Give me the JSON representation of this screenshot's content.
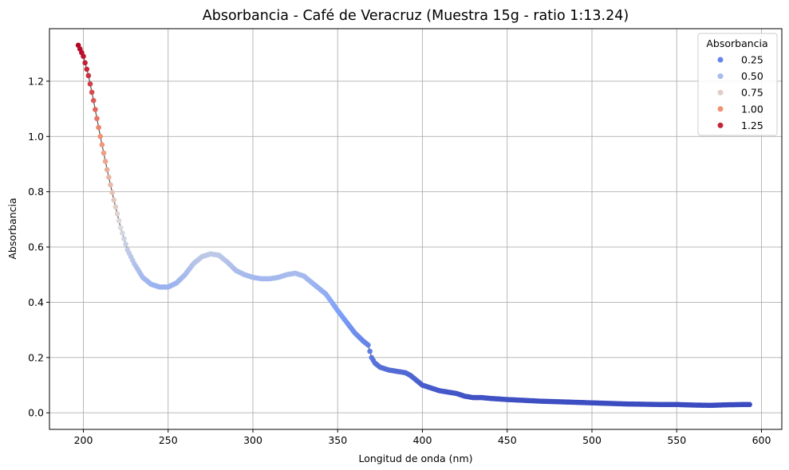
{
  "chart_data": {
    "type": "scatter",
    "title": "Absorbancia - Café de Veracruz (Muestra 15g - ratio 1:13.24)",
    "xlabel": "Longitud de onda (nm)",
    "ylabel": "Absorbancia",
    "xlim": [
      180,
      612
    ],
    "ylim": [
      -0.06,
      1.39
    ],
    "xticks": [
      "200",
      "250",
      "300",
      "350",
      "400",
      "450",
      "500",
      "550",
      "600"
    ],
    "yticks": [
      "0.0",
      "0.2",
      "0.4",
      "0.6",
      "0.8",
      "1.0",
      "1.2"
    ],
    "grid": true,
    "colormap": "coolwarm",
    "legend": {
      "title": "Absorbancia",
      "placement": "top-right",
      "entries": [
        "0.25",
        "0.50",
        "0.75",
        "1.00",
        "1.25"
      ]
    },
    "anchor_points": {
      "x": [
        197,
        200,
        203,
        206,
        210,
        214,
        218,
        222,
        226,
        230,
        235,
        240,
        245,
        250,
        255,
        260,
        265,
        270,
        275,
        280,
        285,
        290,
        295,
        300,
        305,
        310,
        315,
        320,
        325,
        330,
        335,
        340,
        343,
        346,
        350,
        355,
        360,
        365,
        368,
        370,
        372,
        375,
        380,
        385,
        390,
        393,
        396,
        400,
        405,
        410,
        415,
        420,
        425,
        430,
        435,
        440,
        450,
        460,
        470,
        480,
        490,
        500,
        510,
        520,
        530,
        540,
        550,
        560,
        570,
        580,
        590,
        593
      ],
      "y": [
        1.33,
        1.29,
        1.22,
        1.13,
        1.0,
        0.88,
        0.77,
        0.67,
        0.59,
        0.54,
        0.49,
        0.465,
        0.455,
        0.455,
        0.47,
        0.5,
        0.54,
        0.565,
        0.575,
        0.57,
        0.545,
        0.515,
        0.5,
        0.49,
        0.485,
        0.485,
        0.49,
        0.5,
        0.505,
        0.495,
        0.47,
        0.445,
        0.43,
        0.405,
        0.37,
        0.33,
        0.29,
        0.26,
        0.245,
        0.2,
        0.18,
        0.165,
        0.155,
        0.15,
        0.145,
        0.135,
        0.12,
        0.1,
        0.09,
        0.08,
        0.075,
        0.07,
        0.06,
        0.055,
        0.055,
        0.052,
        0.048,
        0.045,
        0.042,
        0.04,
        0.038,
        0.036,
        0.034,
        0.032,
        0.031,
        0.03,
        0.03,
        0.028,
        0.027,
        0.029,
        0.03,
        0.03
      ]
    },
    "sample_step_nm": 1
  }
}
